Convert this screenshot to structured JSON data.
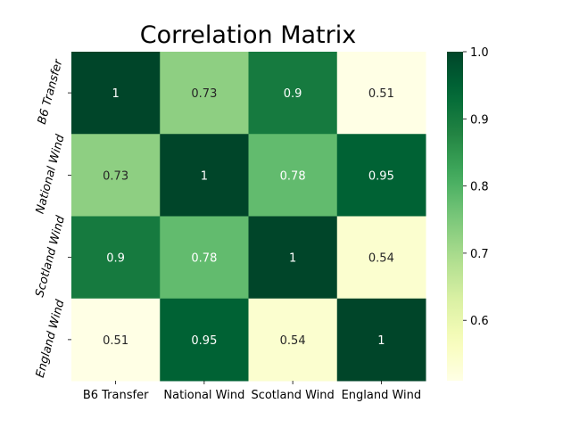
{
  "chart_data": {
    "type": "heatmap",
    "title": "Correlation Matrix",
    "xlabel": "",
    "ylabel": "",
    "x_labels": [
      "B6 Transfer",
      "National Wind",
      "Scotland Wind",
      "England Wind"
    ],
    "y_labels": [
      "B6 Transfer",
      "National Wind",
      "Scotland Wind",
      "England Wind"
    ],
    "values": [
      [
        1,
        0.73,
        0.9,
        0.51
      ],
      [
        0.73,
        1,
        0.78,
        0.95
      ],
      [
        0.9,
        0.78,
        1,
        0.54
      ],
      [
        0.51,
        0.95,
        0.54,
        1
      ]
    ],
    "annotations": [
      [
        "1",
        "0.73",
        "0.9",
        "0.51"
      ],
      [
        "0.73",
        "1",
        "0.78",
        "0.95"
      ],
      [
        "0.9",
        "0.78",
        "1",
        "0.54"
      ],
      [
        "0.51",
        "0.95",
        "0.54",
        "1"
      ]
    ],
    "colormap": "YlGn",
    "vmin": 0.51,
    "vmax": 1.0,
    "colorbar_ticks": [
      "0.6",
      "0.7",
      "0.8",
      "0.9",
      "1.0"
    ],
    "colorbar_tick_values": [
      0.6,
      0.7,
      0.8,
      0.9,
      1.0
    ],
    "grid": false,
    "legend": "colorbar-right"
  }
}
